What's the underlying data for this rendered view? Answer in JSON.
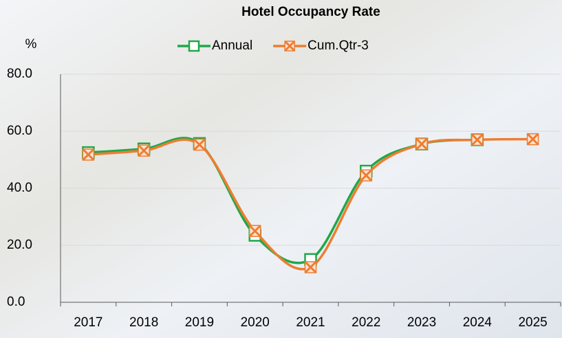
{
  "chart_data": {
    "type": "line",
    "title": "Hotel Occupancy Rate",
    "y_label": "%",
    "categories": [
      "2017",
      "2018",
      "2019",
      "2020",
      "2021",
      "2022",
      "2023",
      "2024",
      "2025"
    ],
    "series": [
      {
        "name": "Annual",
        "color": "#1fa84a",
        "marker": "square",
        "values": [
          52.5,
          53.8,
          55.7,
          23.5,
          15.0,
          46.0,
          55.5,
          57.0,
          null
        ]
      },
      {
        "name": "Cum.Qtr-3",
        "color": "#ed7d31",
        "marker": "x",
        "values": [
          51.8,
          53.2,
          55.3,
          25.0,
          12.3,
          44.5,
          55.5,
          57.0,
          57.2
        ]
      }
    ],
    "ylim": [
      0,
      80
    ],
    "yticks": [
      {
        "value": 0,
        "label": "0.0"
      },
      {
        "value": 20,
        "label": "20.0"
      },
      {
        "value": 40,
        "label": "40.0"
      },
      {
        "value": 60,
        "label": "60.0"
      },
      {
        "value": 80,
        "label": "80.0"
      }
    ],
    "grid": true,
    "smooth": true,
    "legend": "top"
  }
}
